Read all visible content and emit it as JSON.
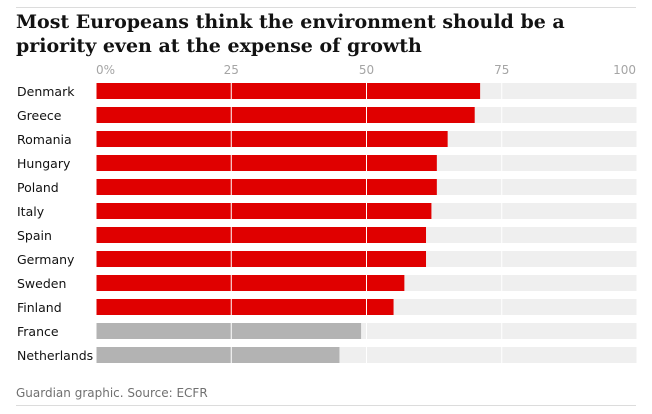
{
  "chart_data": {
    "type": "bar",
    "orientation": "horizontal",
    "title": "Most Europeans think the environment should be a priority even at the expense of growth",
    "categories": [
      "Denmark",
      "Greece",
      "Romania",
      "Hungary",
      "Poland",
      "Italy",
      "Spain",
      "Germany",
      "Sweden",
      "Finland",
      "France",
      "Netherlands"
    ],
    "values": [
      71,
      70,
      65,
      63,
      63,
      62,
      61,
      61,
      57,
      55,
      49,
      45
    ],
    "highlight": [
      true,
      true,
      true,
      true,
      true,
      true,
      true,
      true,
      true,
      true,
      false,
      false
    ],
    "xlim": [
      0,
      100
    ],
    "xticks": [
      0,
      25,
      50,
      75,
      100
    ],
    "xtick_labels": [
      "0%",
      "25",
      "50",
      "75",
      "100"
    ],
    "grid": true,
    "colors": {
      "highlight": "#e00000",
      "other": "#b3b3b3",
      "track": "#efefef",
      "grid": "#ffffff"
    }
  },
  "footer": {
    "source": "Guardian graphic. Source: ECFR"
  }
}
